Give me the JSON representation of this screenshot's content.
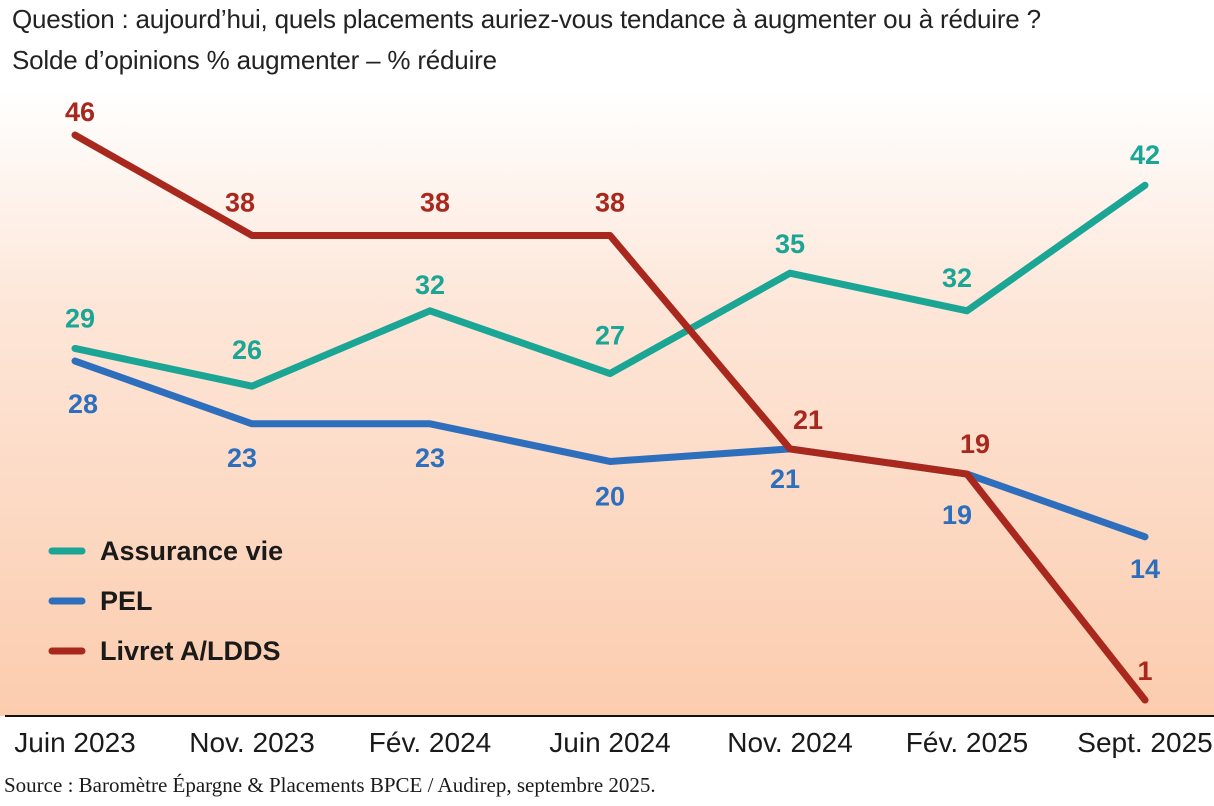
{
  "title": "Question : aujourd’hui, quels placements auriez-vous tendance à augmenter ou à réduire ?",
  "subtitle": "Solde d’opinions % augmenter – % réduire",
  "source": "Source : Baromètre Épargne & Placements BPCE / Audirep, septembre 2025.",
  "chart_data": {
    "type": "line",
    "title": "Question : aujourd’hui, quels placements auriez-vous tendance à augmenter ou à réduire ?",
    "subtitle": "Solde d’opinions % augmenter – % réduire",
    "categories": [
      "Juin 2023",
      "Nov. 2023",
      "Fév. 2024",
      "Juin 2024",
      "Nov. 2024",
      "Fév. 2025",
      "Sept. 2025"
    ],
    "series": [
      {
        "name": "Assurance vie",
        "color": "#1aa595",
        "values": [
          29,
          26,
          32,
          27,
          35,
          32,
          42
        ]
      },
      {
        "name": "PEL",
        "color": "#2e6fbd",
        "values": [
          28,
          23,
          23,
          20,
          21,
          19,
          14
        ]
      },
      {
        "name": "Livret A/LDDS",
        "color": "#a8281e",
        "values": [
          46,
          38,
          38,
          38,
          21,
          19,
          1
        ]
      }
    ],
    "ylim": [
      0,
      50
    ],
    "grid": false,
    "legend": "bottom-left",
    "data_labels": true
  }
}
